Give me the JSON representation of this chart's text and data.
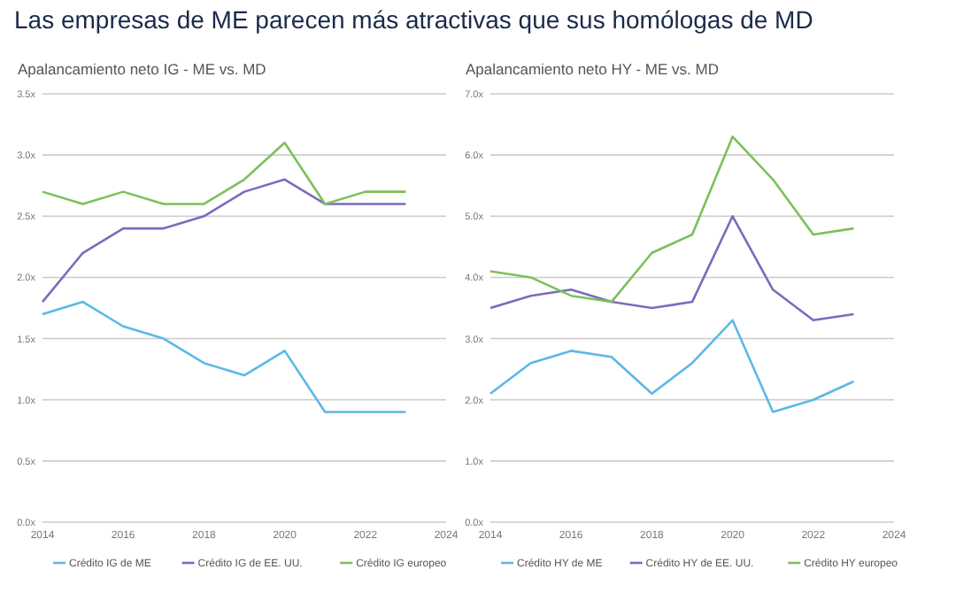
{
  "chart_data": [
    {
      "type": "line",
      "title": "Las empresas de ME parecen más atractivas que sus homólogas de MD",
      "subtitle": "Apalancamiento neto IG - ME vs. MD",
      "x": [
        2014,
        2015,
        2016,
        2017,
        2018,
        2019,
        2020,
        2021,
        2022,
        2023
      ],
      "xlim": [
        2014,
        2024
      ],
      "xticks": [
        2014,
        2016,
        2018,
        2020,
        2022,
        2024
      ],
      "ylim": [
        0,
        3.5
      ],
      "yticks": [
        {
          "value": 0,
          "label": "0.0x"
        },
        {
          "value": 0.5,
          "label": "0.5x"
        },
        {
          "value": 1,
          "label": "1.0x"
        },
        {
          "value": 1.5,
          "label": "1.5x"
        },
        {
          "value": 2,
          "label": "2.0x"
        },
        {
          "value": 2.5,
          "label": "2.5x"
        },
        {
          "value": 3,
          "label": "3.0x"
        },
        {
          "value": 3.5,
          "label": "3.5x"
        }
      ],
      "grid": "y",
      "legend": "bottom",
      "marker": "none",
      "line_style": "solid",
      "series": [
        {
          "name": "Crédito IG de ME",
          "color": "#5bb8e8",
          "values": [
            1.7,
            1.8,
            1.6,
            1.5,
            1.3,
            1.2,
            1.4,
            0.9,
            0.9,
            0.9
          ]
        },
        {
          "name": "Crédito IG de EE. UU.",
          "color": "#7b6bbd",
          "values": [
            1.8,
            2.2,
            2.4,
            2.4,
            2.5,
            2.7,
            2.8,
            2.6,
            2.6,
            2.6
          ]
        },
        {
          "name": "Crédito IG europeo",
          "color": "#7cc05a",
          "values": [
            2.7,
            2.6,
            2.7,
            2.6,
            2.6,
            2.8,
            3.1,
            2.6,
            2.7,
            2.7
          ]
        }
      ]
    },
    {
      "type": "line",
      "subtitle": "Apalancamiento neto HY - ME vs. MD",
      "x": [
        2014,
        2015,
        2016,
        2017,
        2018,
        2019,
        2020,
        2021,
        2022,
        2023
      ],
      "xlim": [
        2014,
        2024
      ],
      "xticks": [
        2014,
        2016,
        2018,
        2020,
        2022,
        2024
      ],
      "ylim": [
        0,
        7
      ],
      "yticks": [
        {
          "value": 0,
          "label": "0.0x"
        },
        {
          "value": 1,
          "label": "1.0x"
        },
        {
          "value": 2,
          "label": "2.0x"
        },
        {
          "value": 3,
          "label": "3.0x"
        },
        {
          "value": 4,
          "label": "4.0x"
        },
        {
          "value": 5,
          "label": "5.0x"
        },
        {
          "value": 6,
          "label": "6.0x"
        },
        {
          "value": 7,
          "label": "7.0x"
        }
      ],
      "grid": "y",
      "legend": "bottom",
      "marker": "none",
      "line_style": "solid",
      "series": [
        {
          "name": "Crédito HY de ME",
          "color": "#5bb8e8",
          "values": [
            2.1,
            2.6,
            2.8,
            2.7,
            2.1,
            2.6,
            3.3,
            1.8,
            2.0,
            2.3
          ]
        },
        {
          "name": "Crédito HY de EE. UU.",
          "color": "#7b6bbd",
          "values": [
            3.5,
            3.7,
            3.8,
            3.6,
            3.5,
            3.6,
            5.0,
            3.8,
            3.3,
            3.4
          ]
        },
        {
          "name": "Crédito HY europeo",
          "color": "#7cc05a",
          "values": [
            4.1,
            4.0,
            3.7,
            3.6,
            4.4,
            4.7,
            6.3,
            5.6,
            4.7,
            4.8
          ]
        }
      ]
    }
  ]
}
